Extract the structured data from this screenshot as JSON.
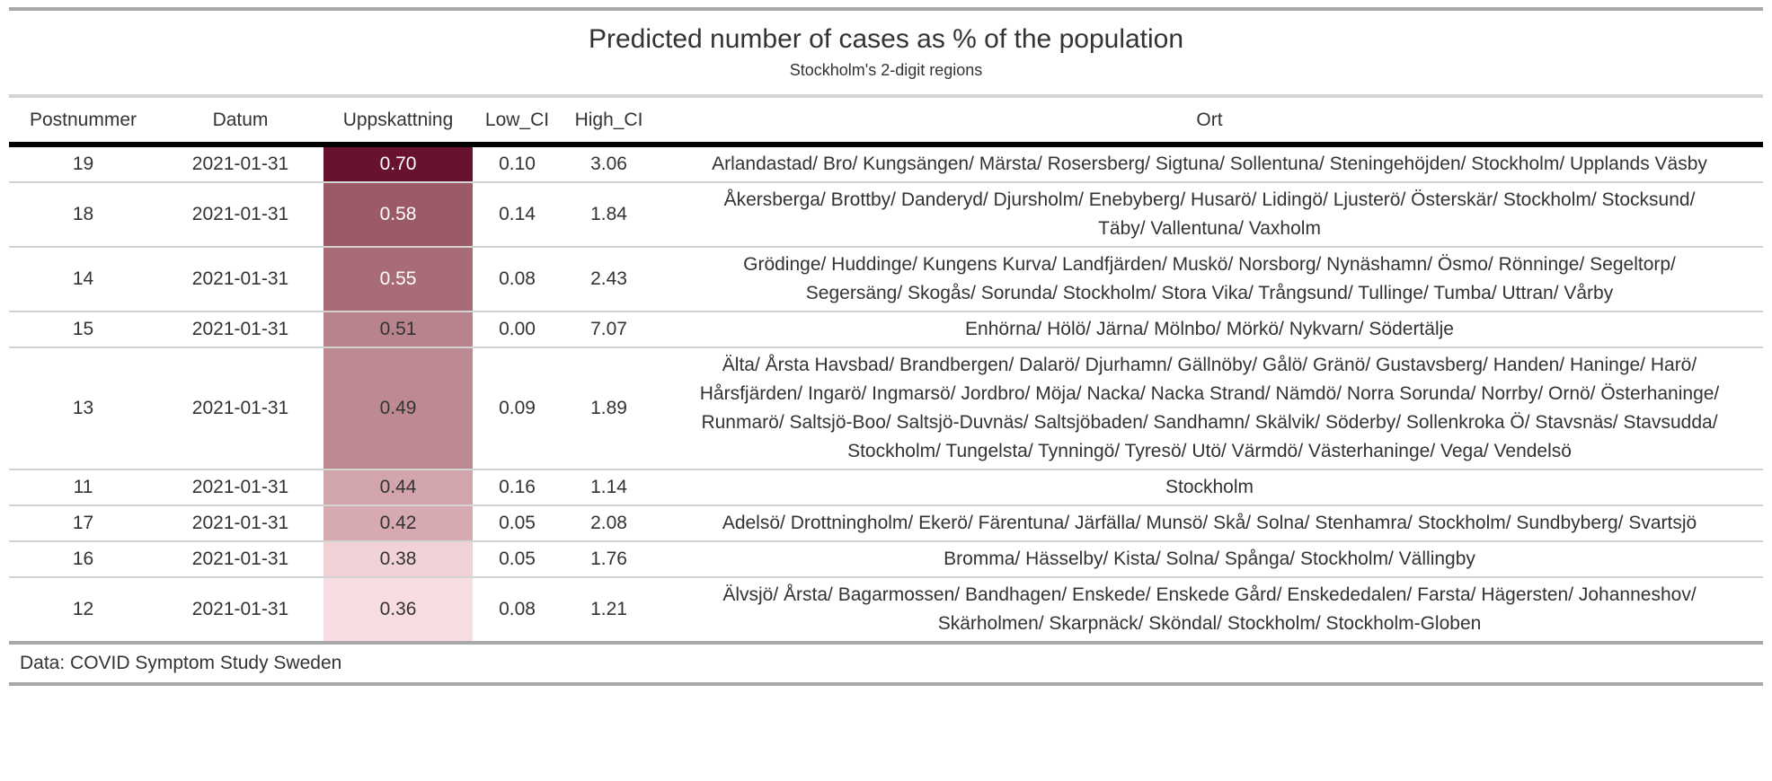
{
  "colors": {
    "text": "#333333",
    "heavy_rule": "#A8A8A8",
    "light_rule": "#D3D3D3",
    "header_rule": "#000000",
    "heat_darkest": "#68122E",
    "heat_lightest": "#F7DDE1"
  },
  "table": {
    "title": "Predicted number of cases as % of the population",
    "subtitle": "Stockholm's 2-digit regions",
    "columns": [
      "Postnummer",
      "Datum",
      "Uppskattning",
      "Low_CI",
      "High_CI",
      "Ort"
    ],
    "source_note": "Data: COVID Symptom Study Sweden",
    "rows": [
      {
        "postnummer": "19",
        "datum": "2021-01-31",
        "uppskattning": "0.70",
        "low_ci": "0.10",
        "high_ci": "3.06",
        "fill": "#68122E",
        "text_color": "#FFFFFF",
        "ort": "Arlandastad/ Bro/ Kungsängen/ Märsta/ Rosersberg/ Sigtuna/ Sollentuna/ Steningehöjden/ Stockholm/ Upplands Väsby"
      },
      {
        "postnummer": "18",
        "datum": "2021-01-31",
        "uppskattning": "0.58",
        "low_ci": "0.14",
        "high_ci": "1.84",
        "fill": "#9C5A67",
        "text_color": "#FFFFFF",
        "ort": "Åkersberga/ Brottby/ Danderyd/ Djursholm/ Enebyberg/ Husarö/ Lidingö/ Ljusterö/ Österskär/ Stockholm/ Stocksund/ Täby/ Vallentuna/ Vaxholm"
      },
      {
        "postnummer": "14",
        "datum": "2021-01-31",
        "uppskattning": "0.55",
        "low_ci": "0.08",
        "high_ci": "2.43",
        "fill": "#A96C77",
        "text_color": "#FFFFFF",
        "ort": "Grödinge/ Huddinge/ Kungens Kurva/ Landfjärden/ Muskö/ Norsborg/ Nynäshamn/ Ösmo/ Rönninge/ Segeltorp/ Segersäng/ Skogås/ Sorunda/ Stockholm/ Stora Vika/ Trångsund/ Tullinge/ Tumba/ Uttran/ Vårby"
      },
      {
        "postnummer": "15",
        "datum": "2021-01-31",
        "uppskattning": "0.51",
        "low_ci": "0.00",
        "high_ci": "7.07",
        "fill": "#B9838D",
        "text_color": "#333333",
        "ort": "Enhörna/ Hölö/ Järna/ Mölnbo/ Mörkö/ Nykvarn/ Södertälje"
      },
      {
        "postnummer": "13",
        "datum": "2021-01-31",
        "uppskattning": "0.49",
        "low_ci": "0.09",
        "high_ci": "1.89",
        "fill": "#BE8A92",
        "text_color": "#333333",
        "ort": "Älta/ Årsta Havsbad/ Brandbergen/ Dalarö/ Djurhamn/ Gällnöby/ Gålö/ Gränö/ Gustavsberg/ Handen/ Haninge/ Harö/ Hårsfjärden/ Ingarö/ Ingmarsö/ Jordbro/ Möja/ Nacka/ Nacka Strand/ Nämdö/ Norra Sorunda/ Norrby/ Ornö/ Österhaninge/ Runmarö/ Saltsjö-Boo/ Saltsjö-Duvnäs/ Saltsjöbaden/ Sandhamn/ Skälvik/ Söderby/ Sollenkroka Ö/ Stavsnäs/ Stavsudda/ Stockholm/ Tungelsta/ Tynningö/ Tyresö/ Utö/ Värmdö/ Västerhaninge/ Vega/ Vendelsö"
      },
      {
        "postnummer": "11",
        "datum": "2021-01-31",
        "uppskattning": "0.44",
        "low_ci": "0.16",
        "high_ci": "1.14",
        "fill": "#D2A4AC",
        "text_color": "#333333",
        "ort": "Stockholm"
      },
      {
        "postnummer": "17",
        "datum": "2021-01-31",
        "uppskattning": "0.42",
        "low_ci": "0.05",
        "high_ci": "2.08",
        "fill": "#D7AAB1",
        "text_color": "#333333",
        "ort": "Adelsö/ Drottningholm/ Ekerö/ Färentuna/ Järfälla/ Munsö/ Skå/ Solna/ Stenhamra/ Stockholm/ Sundbyberg/ Svartsjö"
      },
      {
        "postnummer": "16",
        "datum": "2021-01-31",
        "uppskattning": "0.38",
        "low_ci": "0.05",
        "high_ci": "1.76",
        "fill": "#F1D2D7",
        "text_color": "#333333",
        "ort": "Bromma/ Hässelby/ Kista/ Solna/ Spånga/ Stockholm/ Vällingby"
      },
      {
        "postnummer": "12",
        "datum": "2021-01-31",
        "uppskattning": "0.36",
        "low_ci": "0.08",
        "high_ci": "1.21",
        "fill": "#F7DDE1",
        "text_color": "#333333",
        "ort": "Älvsjö/ Årsta/ Bagarmossen/ Bandhagen/ Enskede/ Enskede Gård/ Enskededalen/ Farsta/ Hägersten/ Johanneshov/ Skärholmen/ Skarpnäck/ Sköndal/ Stockholm/ Stockholm-Globen"
      }
    ]
  },
  "chart_data": {
    "type": "table",
    "title": "Predicted number of cases as % of the population",
    "subtitle": "Stockholm's 2-digit regions",
    "columns": [
      "Postnummer",
      "Datum",
      "Uppskattning",
      "Low_CI",
      "High_CI",
      "Ort"
    ],
    "heatmap_column": "Uppskattning",
    "heatmap_range": [
      0.36,
      0.7
    ],
    "source_note": "Data: COVID Symptom Study Sweden",
    "rows": [
      {
        "postnummer": 19,
        "datum": "2021-01-31",
        "uppskattning": 0.7,
        "low_ci": 0.1,
        "high_ci": 3.06
      },
      {
        "postnummer": 18,
        "datum": "2021-01-31",
        "uppskattning": 0.58,
        "low_ci": 0.14,
        "high_ci": 1.84
      },
      {
        "postnummer": 14,
        "datum": "2021-01-31",
        "uppskattning": 0.55,
        "low_ci": 0.08,
        "high_ci": 2.43
      },
      {
        "postnummer": 15,
        "datum": "2021-01-31",
        "uppskattning": 0.51,
        "low_ci": 0.0,
        "high_ci": 7.07
      },
      {
        "postnummer": 13,
        "datum": "2021-01-31",
        "uppskattning": 0.49,
        "low_ci": 0.09,
        "high_ci": 1.89
      },
      {
        "postnummer": 11,
        "datum": "2021-01-31",
        "uppskattning": 0.44,
        "low_ci": 0.16,
        "high_ci": 1.14
      },
      {
        "postnummer": 17,
        "datum": "2021-01-31",
        "uppskattning": 0.42,
        "low_ci": 0.05,
        "high_ci": 2.08
      },
      {
        "postnummer": 16,
        "datum": "2021-01-31",
        "uppskattning": 0.38,
        "low_ci": 0.05,
        "high_ci": 1.76
      },
      {
        "postnummer": 12,
        "datum": "2021-01-31",
        "uppskattning": 0.36,
        "low_ci": 0.08,
        "high_ci": 1.21
      }
    ]
  }
}
